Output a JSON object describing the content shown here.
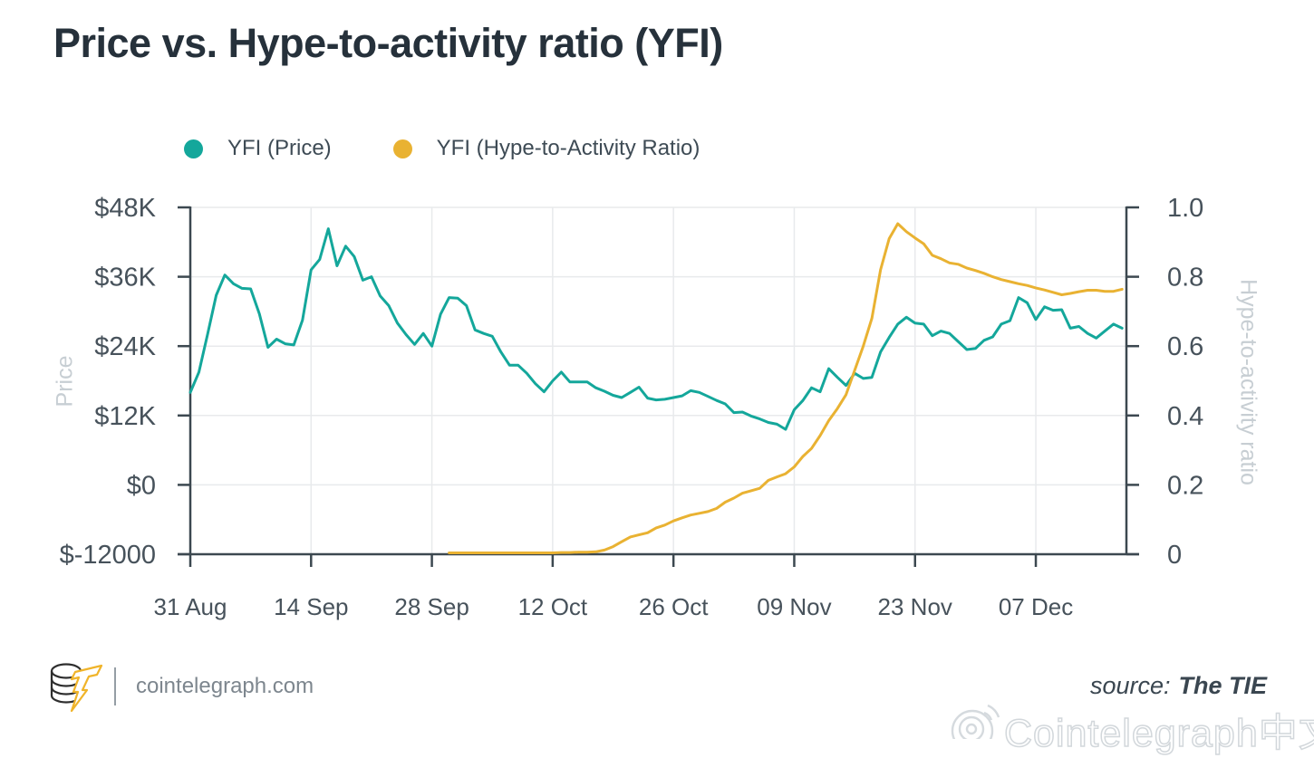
{
  "title": "Price vs. Hype-to-activity ratio (YFI)",
  "legend": [
    {
      "label": "YFI (Price)",
      "color": "#14a79b"
    },
    {
      "label": "YFI (Hype-to-Activity Ratio)",
      "color": "#e9b232"
    }
  ],
  "footer": {
    "site": "cointelegraph.com",
    "source_prefix": "source:",
    "source_name": "The TIE",
    "watermark": "Cointelegraph中文"
  },
  "colors": {
    "price": "#14a79b",
    "ratio": "#e9b232",
    "axis": "#3c4850",
    "grid": "#e8eaec",
    "tick_label": "#47525b"
  },
  "chart_data": {
    "type": "line",
    "title": "Price vs. Hype-to-activity ratio (YFI)",
    "grid": true,
    "legend_position": "top",
    "x_axis": {
      "unit": "date",
      "domain_days": [
        0,
        108.5
      ],
      "tick_days": [
        0,
        14,
        28,
        42,
        56,
        70,
        84,
        98
      ],
      "tick_labels": [
        "31 Aug",
        "14 Sep",
        "28 Sep",
        "12 Oct",
        "26 Oct",
        "09 Nov",
        "23 Nov",
        "07 Dec"
      ]
    },
    "y_left": {
      "label": "Price",
      "range": [
        -12000,
        48000
      ],
      "ticks": [
        48000,
        36000,
        24000,
        12000,
        0,
        -12000
      ],
      "tick_labels": [
        "$48K",
        "$36K",
        "$24K",
        "$12K",
        "$0",
        "$-12000"
      ]
    },
    "y_right": {
      "label": "Hype-to-activity ratio",
      "range": [
        0,
        1
      ],
      "ticks": [
        1.0,
        0.8,
        0.6,
        0.4,
        0.2,
        0
      ],
      "tick_labels": [
        "1.0",
        "0.8",
        "0.6",
        "0.4",
        "0.2",
        "0"
      ]
    },
    "series": [
      {
        "name": "YFI (Price)",
        "axis": "left",
        "color": "#14a79b",
        "points": [
          [
            0,
            16000
          ],
          [
            1,
            19500
          ],
          [
            2,
            26000
          ],
          [
            3,
            32800
          ],
          [
            4,
            36300
          ],
          [
            5,
            34800
          ],
          [
            6,
            34000
          ],
          [
            7,
            33900
          ],
          [
            8,
            29600
          ],
          [
            9,
            23800
          ],
          [
            10,
            25200
          ],
          [
            11,
            24400
          ],
          [
            12,
            24200
          ],
          [
            13,
            28500
          ],
          [
            14,
            37200
          ],
          [
            15,
            39000
          ],
          [
            16,
            44300
          ],
          [
            17,
            37900
          ],
          [
            18,
            41300
          ],
          [
            19,
            39500
          ],
          [
            20,
            35400
          ],
          [
            21,
            36000
          ],
          [
            22,
            32700
          ],
          [
            23,
            31000
          ],
          [
            24,
            28000
          ],
          [
            25,
            26000
          ],
          [
            26,
            24300
          ],
          [
            27,
            26200
          ],
          [
            28,
            24000
          ],
          [
            29,
            29500
          ],
          [
            30,
            32400
          ],
          [
            31,
            32300
          ],
          [
            32,
            31000
          ],
          [
            33,
            26800
          ],
          [
            34,
            26200
          ],
          [
            35,
            25700
          ],
          [
            36,
            23000
          ],
          [
            37,
            20700
          ],
          [
            38,
            20700
          ],
          [
            39,
            19300
          ],
          [
            40,
            17500
          ],
          [
            41,
            16100
          ],
          [
            42,
            18000
          ],
          [
            43,
            19500
          ],
          [
            44,
            17800
          ],
          [
            45,
            17800
          ],
          [
            46,
            17800
          ],
          [
            47,
            16800
          ],
          [
            48,
            16200
          ],
          [
            49,
            15500
          ],
          [
            50,
            15100
          ],
          [
            51,
            16000
          ],
          [
            52,
            16900
          ],
          [
            53,
            15000
          ],
          [
            54,
            14700
          ],
          [
            55,
            14800
          ],
          [
            56,
            15100
          ],
          [
            57,
            15400
          ],
          [
            58,
            16300
          ],
          [
            59,
            16000
          ],
          [
            60,
            15300
          ],
          [
            61,
            14600
          ],
          [
            62,
            14000
          ],
          [
            63,
            12500
          ],
          [
            64,
            12600
          ],
          [
            65,
            11900
          ],
          [
            66,
            11400
          ],
          [
            67,
            10800
          ],
          [
            68,
            10500
          ],
          [
            69,
            9600
          ],
          [
            70,
            13000
          ],
          [
            71,
            14600
          ],
          [
            72,
            16800
          ],
          [
            73,
            16100
          ],
          [
            74,
            20100
          ],
          [
            75,
            18600
          ],
          [
            76,
            17200
          ],
          [
            77,
            19300
          ],
          [
            78,
            18400
          ],
          [
            79,
            18600
          ],
          [
            80,
            23000
          ],
          [
            81,
            25500
          ],
          [
            82,
            27800
          ],
          [
            83,
            29000
          ],
          [
            84,
            28000
          ],
          [
            85,
            27800
          ],
          [
            86,
            25800
          ],
          [
            87,
            26600
          ],
          [
            88,
            26200
          ],
          [
            89,
            24800
          ],
          [
            90,
            23400
          ],
          [
            91,
            23600
          ],
          [
            92,
            25000
          ],
          [
            93,
            25600
          ],
          [
            94,
            27800
          ],
          [
            95,
            28400
          ],
          [
            96,
            32400
          ],
          [
            97,
            31500
          ],
          [
            98,
            28600
          ],
          [
            99,
            30800
          ],
          [
            100,
            30200
          ],
          [
            101,
            30300
          ],
          [
            102,
            27100
          ],
          [
            103,
            27400
          ],
          [
            104,
            26200
          ],
          [
            105,
            25400
          ],
          [
            106,
            26600
          ],
          [
            107,
            27800
          ],
          [
            108,
            27100
          ]
        ]
      },
      {
        "name": "YFI (Hype-to-Activity Ratio)",
        "axis": "right",
        "color": "#e9b232",
        "points": [
          [
            30,
            0.004
          ],
          [
            31,
            0.004
          ],
          [
            32,
            0.004
          ],
          [
            33,
            0.004
          ],
          [
            34,
            0.004
          ],
          [
            35,
            0.004
          ],
          [
            36,
            0.004
          ],
          [
            37,
            0.004
          ],
          [
            38,
            0.004
          ],
          [
            39,
            0.004
          ],
          [
            40,
            0.004
          ],
          [
            41,
            0.004
          ],
          [
            42,
            0.004
          ],
          [
            43,
            0.005
          ],
          [
            44,
            0.005
          ],
          [
            45,
            0.006
          ],
          [
            46,
            0.006
          ],
          [
            47,
            0.007
          ],
          [
            48,
            0.012
          ],
          [
            49,
            0.022
          ],
          [
            50,
            0.036
          ],
          [
            51,
            0.05
          ],
          [
            52,
            0.056
          ],
          [
            53,
            0.062
          ],
          [
            54,
            0.076
          ],
          [
            55,
            0.084
          ],
          [
            56,
            0.096
          ],
          [
            57,
            0.105
          ],
          [
            58,
            0.113
          ],
          [
            59,
            0.118
          ],
          [
            60,
            0.123
          ],
          [
            61,
            0.132
          ],
          [
            62,
            0.15
          ],
          [
            63,
            0.162
          ],
          [
            64,
            0.176
          ],
          [
            65,
            0.183
          ],
          [
            66,
            0.19
          ],
          [
            67,
            0.213
          ],
          [
            68,
            0.223
          ],
          [
            69,
            0.232
          ],
          [
            70,
            0.252
          ],
          [
            71,
            0.282
          ],
          [
            72,
            0.305
          ],
          [
            73,
            0.342
          ],
          [
            74,
            0.385
          ],
          [
            75,
            0.42
          ],
          [
            76,
            0.46
          ],
          [
            77,
            0.53
          ],
          [
            78,
            0.6
          ],
          [
            79,
            0.68
          ],
          [
            80,
            0.82
          ],
          [
            81,
            0.91
          ],
          [
            82,
            0.953
          ],
          [
            83,
            0.93
          ],
          [
            84,
            0.912
          ],
          [
            85,
            0.895
          ],
          [
            86,
            0.862
          ],
          [
            87,
            0.852
          ],
          [
            88,
            0.84
          ],
          [
            89,
            0.836
          ],
          [
            90,
            0.825
          ],
          [
            91,
            0.818
          ],
          [
            92,
            0.81
          ],
          [
            93,
            0.8
          ],
          [
            94,
            0.792
          ],
          [
            95,
            0.786
          ],
          [
            96,
            0.78
          ],
          [
            97,
            0.775
          ],
          [
            98,
            0.768
          ],
          [
            99,
            0.762
          ],
          [
            100,
            0.755
          ],
          [
            101,
            0.748
          ],
          [
            102,
            0.752
          ],
          [
            103,
            0.757
          ],
          [
            104,
            0.761
          ],
          [
            105,
            0.761
          ],
          [
            106,
            0.758
          ],
          [
            107,
            0.758
          ],
          [
            108,
            0.764
          ]
        ]
      }
    ]
  }
}
